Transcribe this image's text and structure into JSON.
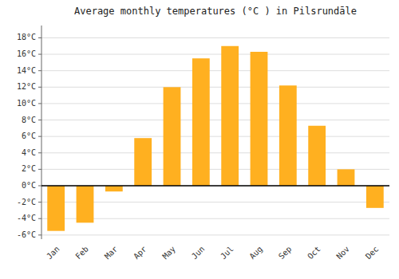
{
  "chart_data": {
    "type": "bar",
    "title": "Average monthly temperatures (°C ) in Pilsrundāle",
    "categories": [
      "Jan",
      "Feb",
      "Mar",
      "Apr",
      "May",
      "Jun",
      "Jul",
      "Aug",
      "Sep",
      "Oct",
      "Nov",
      "Dec"
    ],
    "values": [
      -5.5,
      -4.5,
      -0.7,
      5.8,
      12.0,
      15.5,
      17.0,
      16.3,
      12.2,
      7.3,
      2.0,
      -2.7
    ],
    "color": "#FFB020",
    "ylim": [
      -6.5,
      19.5
    ],
    "yticks": [
      {
        "value": -6,
        "label": "-6°C"
      },
      {
        "value": -4,
        "label": "-4°C"
      },
      {
        "value": -2,
        "label": "-2°C"
      },
      {
        "value": 0,
        "label": "0°C"
      },
      {
        "value": 2,
        "label": "2°C"
      },
      {
        "value": 4,
        "label": "4°C"
      },
      {
        "value": 6,
        "label": "6°C"
      },
      {
        "value": 8,
        "label": "8°C"
      },
      {
        "value": 10,
        "label": "10°C"
      },
      {
        "value": 12,
        "label": "12°C"
      },
      {
        "value": 14,
        "label": "14°C"
      },
      {
        "value": 16,
        "label": "16°C"
      },
      {
        "value": 18,
        "label": "18°C"
      }
    ],
    "grid": true
  }
}
